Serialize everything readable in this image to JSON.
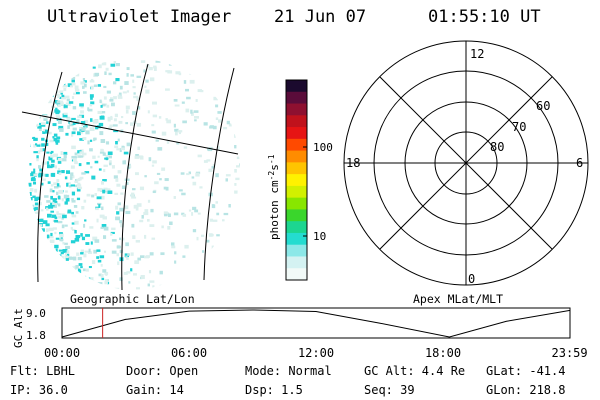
{
  "header": {
    "instrument": "Ultraviolet Imager",
    "date": "21 Jun 07",
    "time": "01:55:10 UT"
  },
  "colors": {
    "emission_main": "#22d2d6",
    "emission_light": "#b8e4e4",
    "emission_pale": "#dcf0ee",
    "time_marker": "#cc2222"
  },
  "colorbar": {
    "unit_prefix": "photon cm",
    "unit_exp1": "-2",
    "unit_mid": "s",
    "unit_exp2": "-1",
    "ticks": [
      "100",
      "10"
    ],
    "scale": "log",
    "colors_top_to_bottom": [
      "#1b0a2e",
      "#5a0c3a",
      "#8e1030",
      "#c0121c",
      "#e61414",
      "#ff4a00",
      "#ff8c00",
      "#ffc400",
      "#fff200",
      "#d2f000",
      "#88e600",
      "#3ad62c",
      "#1cd690",
      "#24dcd0",
      "#8ce8e8",
      "#d4f2f2",
      "#f2faf8"
    ]
  },
  "map_panel": {
    "label": "Geographic Lat/Lon"
  },
  "polar_panel": {
    "label": "Apex MLat/MLT",
    "mlt_labels": {
      "top": "12",
      "left": "18",
      "right": "6",
      "bottom": "0"
    },
    "lat_labels": [
      "60",
      "70",
      "80"
    ]
  },
  "chart_data": {
    "type": "line",
    "ylabel": "GC Alt",
    "yticks": [
      "9.0",
      "1.8"
    ],
    "ylim": [
      1.8,
      9.0
    ],
    "xticks": [
      "00:00",
      "06:00",
      "12:00",
      "18:00",
      "23:59"
    ],
    "x_hours": [
      0,
      3,
      6,
      9,
      12,
      15,
      18.3,
      21,
      24
    ],
    "series": [
      {
        "values": [
          1.8,
          6.5,
          8.7,
          9.0,
          8.6,
          5.5,
          1.8,
          6.0,
          8.9
        ]
      }
    ],
    "current_time_hours": 1.92
  },
  "footer": {
    "row1": [
      {
        "key": "Flt:",
        "value": "LBHL"
      },
      {
        "key": "Door:",
        "value": "Open"
      },
      {
        "key": "Mode:",
        "value": "Normal"
      },
      {
        "key": "GC Alt:",
        "value": "4.4 Re"
      },
      {
        "key": "GLat:",
        "value": "-41.4"
      }
    ],
    "row2": [
      {
        "key": "IP:",
        "value": "36.0"
      },
      {
        "key": "Gain:",
        "value": "14"
      },
      {
        "key": "Dsp:",
        "value": "1.5"
      },
      {
        "key": "Seq:",
        "value": "39"
      },
      {
        "key": "GLon:",
        "value": "218.8"
      }
    ]
  }
}
